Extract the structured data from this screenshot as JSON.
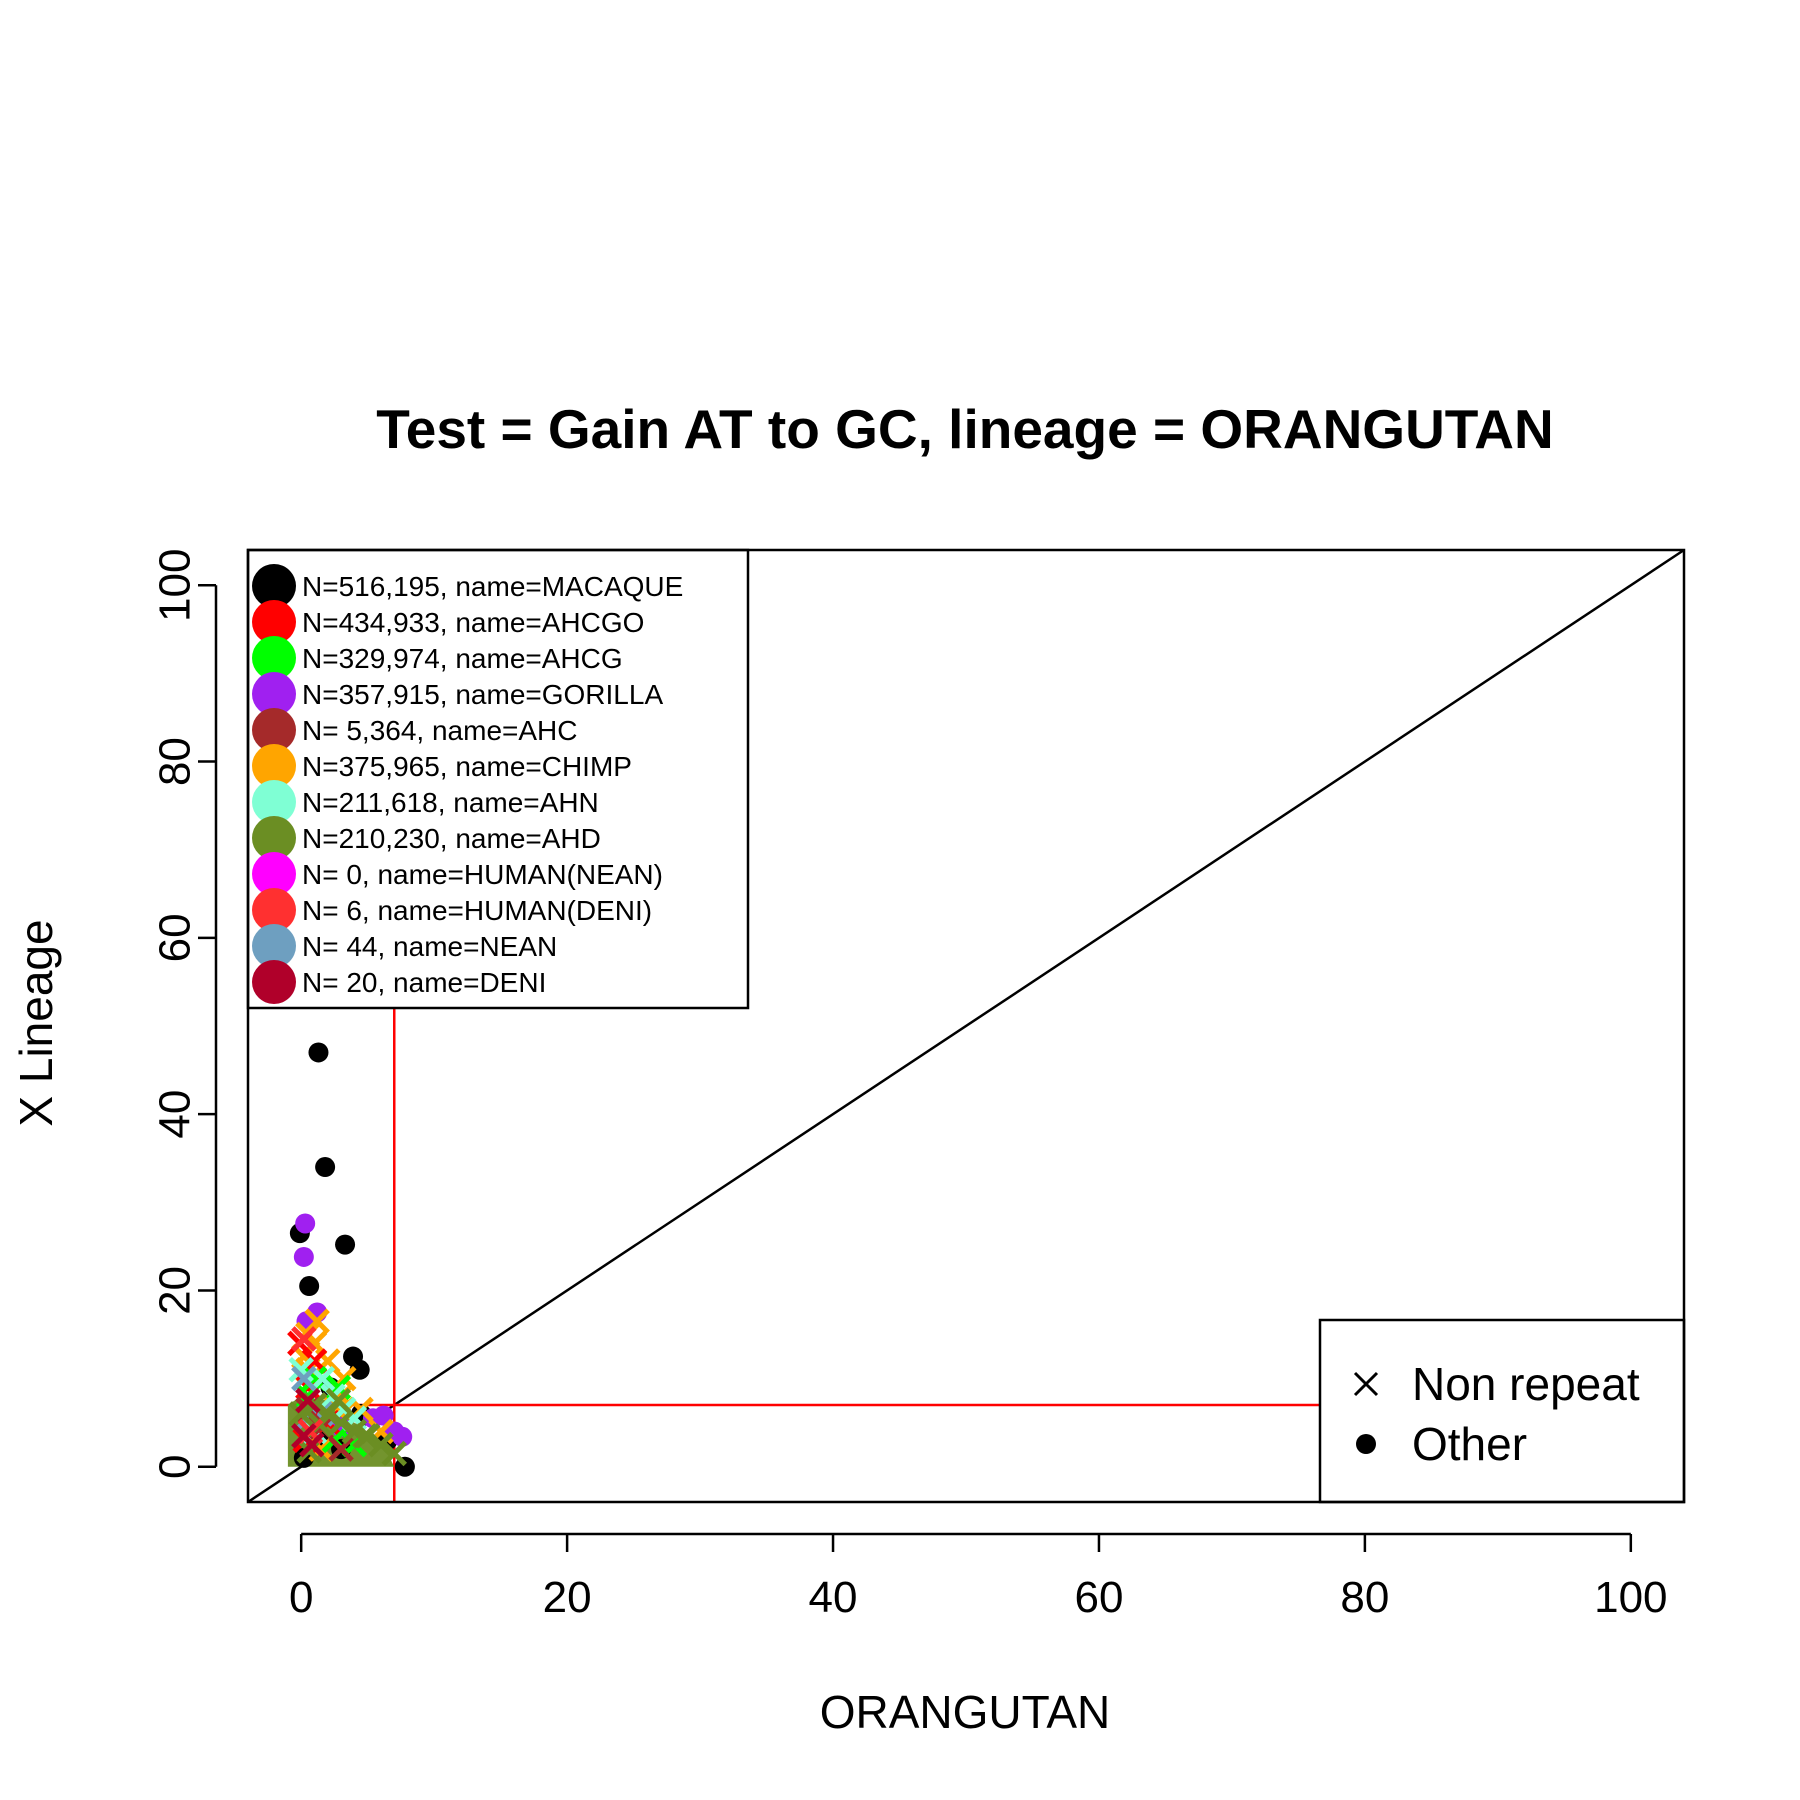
{
  "chart_data": {
    "type": "scatter",
    "title": "Test = Gain AT to GC, lineage = ORANGUTAN",
    "xlabel": "ORANGUTAN",
    "ylabel": "X Lineage",
    "xlim": [
      -4,
      104
    ],
    "ylim": [
      -4,
      104
    ],
    "xticks": [
      0,
      20,
      40,
      60,
      80,
      100
    ],
    "yticks": [
      0,
      20,
      40,
      60,
      80,
      100
    ],
    "reference_lines": {
      "diagonal": true,
      "vertical_x": 7,
      "horizontal_y": 7,
      "threshold_color": "#ff0000"
    },
    "legend_groups": {
      "placement": "top-left",
      "entries": [
        {
          "label": "N=516,195, name=MACAQUE",
          "color": "#000000"
        },
        {
          "label": "N=434,933, name=AHCGO",
          "color": "#ff0000"
        },
        {
          "label": "N=329,974, name=AHCG",
          "color": "#00ff00"
        },
        {
          "label": "N=357,915, name=GORILLA",
          "color": "#a020f0"
        },
        {
          "label": "N=  5,364, name=AHC",
          "color": "#a52a2a"
        },
        {
          "label": "N=375,965, name=CHIMP",
          "color": "#ffa500"
        },
        {
          "label": "N=211,618, name=AHN",
          "color": "#7fffd4"
        },
        {
          "label": "N=210,230, name=AHD",
          "color": "#6b8e23"
        },
        {
          "label": "N=      0, name=HUMAN(NEAN)",
          "color": "#ff00ff"
        },
        {
          "label": "N=      6, name=HUMAN(DENI)",
          "color": "#ff3030"
        },
        {
          "label": "N=     44, name=NEAN",
          "color": "#6e9fc0"
        },
        {
          "label": "N=     20, name=DENI",
          "color": "#b0002a"
        }
      ]
    },
    "legend_shapes": {
      "placement": "bottom-right",
      "entries": [
        {
          "label": "Non repeat",
          "shape": "cross"
        },
        {
          "label": "Other",
          "shape": "dot"
        }
      ]
    },
    "series": [
      {
        "color": "#000000",
        "marker": "dot",
        "points": [
          [
            0.7,
            55
          ],
          [
            1.3,
            47
          ],
          [
            1.8,
            34
          ],
          [
            -0.1,
            26.5
          ],
          [
            3.3,
            25.2
          ],
          [
            0.6,
            20.5
          ],
          [
            3.9,
            12.5
          ],
          [
            4.4,
            11
          ],
          [
            2.2,
            9
          ],
          [
            4.5,
            6
          ],
          [
            6.5,
            3
          ],
          [
            7.8,
            0
          ],
          [
            1.5,
            3
          ],
          [
            3,
            2
          ],
          [
            0.2,
            1
          ]
        ]
      },
      {
        "color": "#a020f0",
        "marker": "dot",
        "points": [
          [
            0.3,
            27.6
          ],
          [
            0.2,
            23.8
          ],
          [
            1.2,
            17.5
          ],
          [
            0.4,
            16.5
          ],
          [
            6.2,
            5.8
          ],
          [
            7,
            4
          ],
          [
            5.4,
            5.5
          ],
          [
            7.6,
            3.4
          ],
          [
            3,
            4.5
          ]
        ]
      },
      {
        "color": "#ffa500",
        "marker": "cross",
        "points": [
          [
            1.2,
            16.5
          ],
          [
            0.5,
            15
          ],
          [
            1,
            14
          ],
          [
            2,
            12
          ],
          [
            0.2,
            12.5
          ],
          [
            3.2,
            10
          ],
          [
            4.5,
            6.5
          ],
          [
            2.4,
            7
          ],
          [
            3,
            8
          ],
          [
            6,
            4
          ],
          [
            1.5,
            2
          ],
          [
            0.5,
            11
          ]
        ]
      },
      {
        "color": "#ff0000",
        "marker": "cross",
        "points": [
          [
            -0.1,
            14
          ],
          [
            1,
            12
          ],
          [
            0.5,
            9
          ],
          [
            2,
            5
          ],
          [
            0.3,
            3
          ]
        ]
      },
      {
        "color": "#00ff00",
        "marker": "cross",
        "points": [
          [
            1,
            10
          ],
          [
            2.8,
            9
          ],
          [
            0.5,
            8
          ],
          [
            2.5,
            3
          ],
          [
            4,
            2.5
          ]
        ]
      },
      {
        "color": "#7fffd4",
        "marker": "cross",
        "points": [
          [
            0,
            11
          ],
          [
            1.6,
            10
          ],
          [
            2.4,
            8
          ],
          [
            4,
            5.5
          ],
          [
            1,
            4
          ],
          [
            3.2,
            6.5
          ]
        ]
      },
      {
        "color": "#6e9fc0",
        "marker": "cross",
        "points": [
          [
            0.2,
            10
          ],
          [
            1,
            7
          ],
          [
            0.5,
            5.5
          ],
          [
            1.5,
            6
          ]
        ]
      },
      {
        "color": "#a52a2a",
        "marker": "cross",
        "points": [
          [
            0.5,
            6.5
          ],
          [
            1.5,
            4.5
          ],
          [
            3,
            2
          ]
        ]
      },
      {
        "color": "#6b8e23",
        "marker": "cross",
        "points": [
          [
            0,
            6
          ],
          [
            1,
            7
          ],
          [
            2,
            6
          ],
          [
            3,
            5
          ],
          [
            4,
            4
          ],
          [
            5,
            3.5
          ],
          [
            6,
            2.5
          ],
          [
            7,
            1.5
          ],
          [
            2.8,
            7.5
          ],
          [
            4.8,
            3.5
          ],
          [
            1.4,
            4.8
          ],
          [
            0.6,
            1.8
          ]
        ]
      },
      {
        "color": "#ff3030",
        "marker": "cross",
        "points": [
          [
            0.2,
            14.5
          ],
          [
            0.7,
            4
          ]
        ]
      },
      {
        "color": "#b0002a",
        "marker": "cross",
        "points": [
          [
            0.5,
            7.5
          ],
          [
            0.2,
            3.5
          ],
          [
            0.8,
            2.5
          ]
        ]
      }
    ]
  }
}
